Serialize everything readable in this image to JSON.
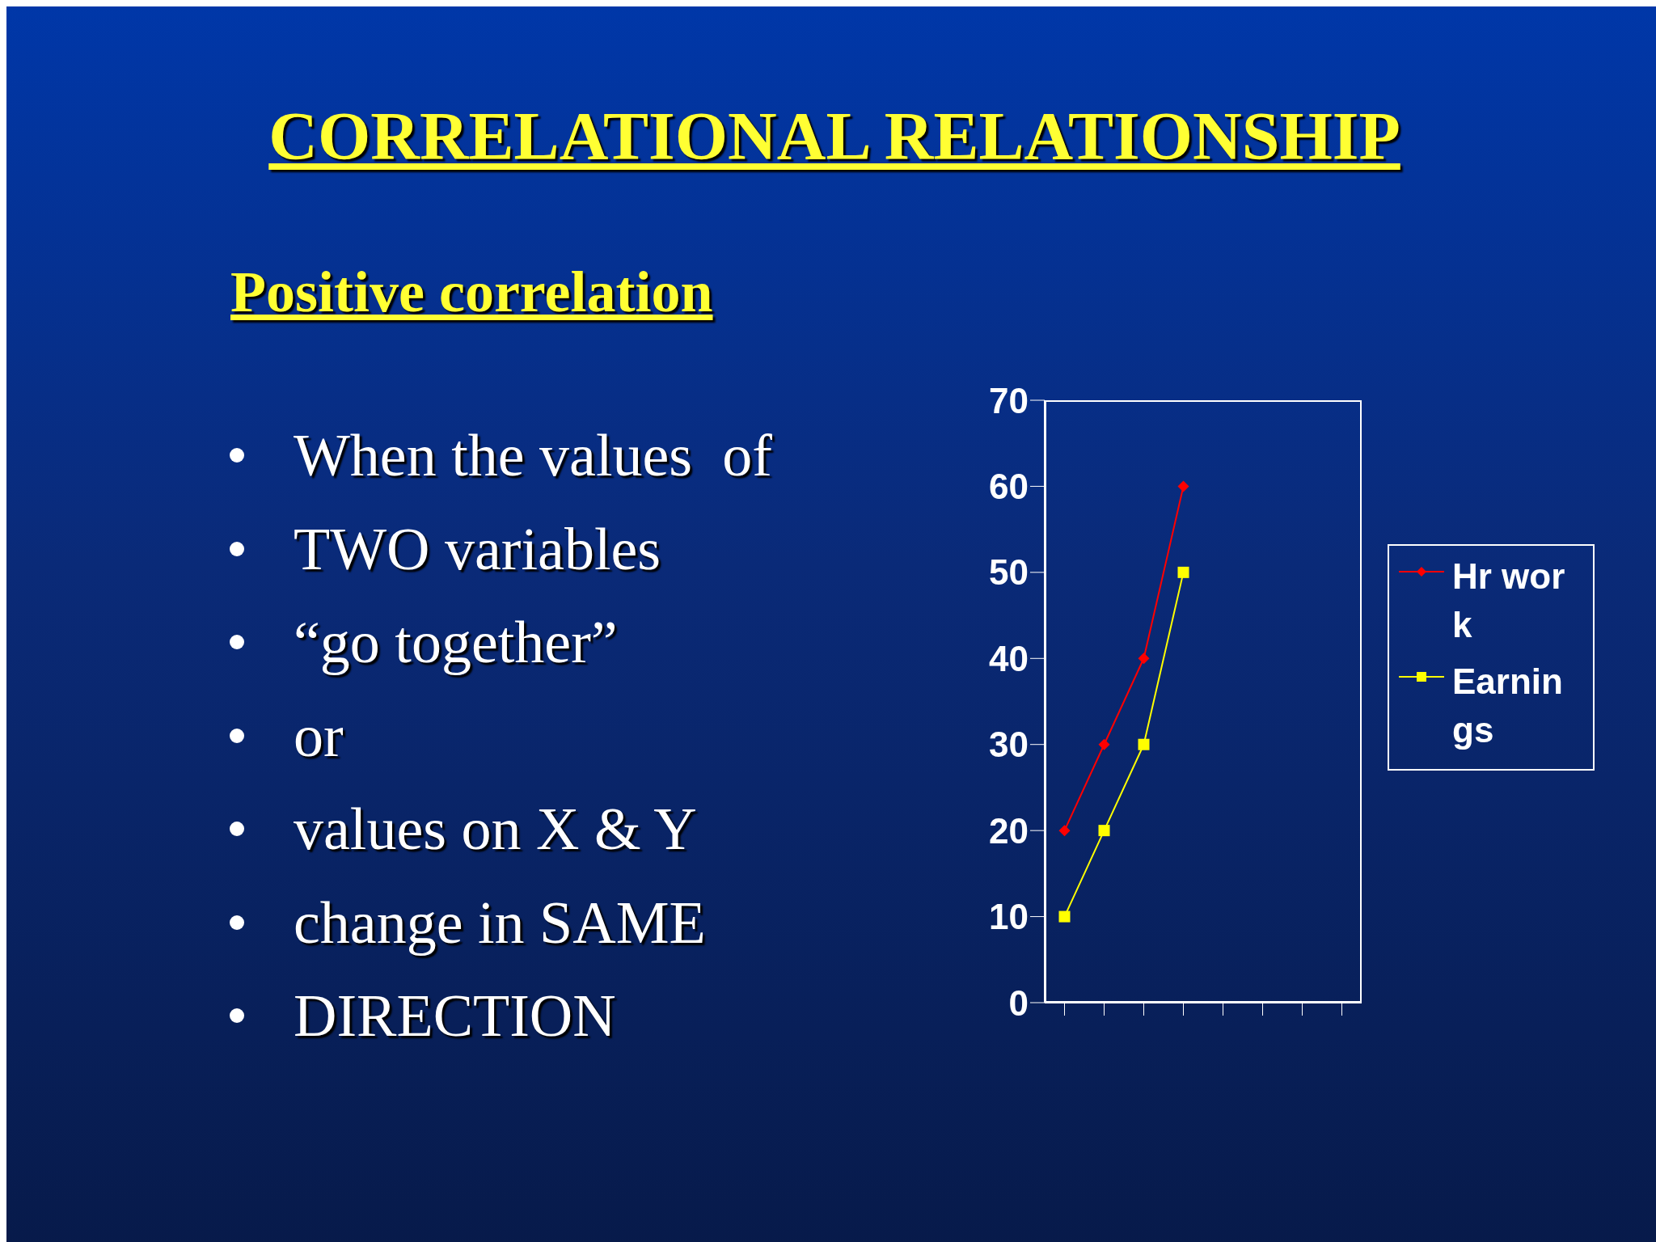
{
  "chart_data": {
    "type": "line",
    "title": "CORRELATIONAL RELATIONSHIP",
    "subtitle": "Positive correlation",
    "annotations": [
      "When the values  of",
      "TWO variables",
      "“go together”",
      "or",
      "values on X & Y",
      "change in SAME",
      "DIRECTION"
    ],
    "categories": [
      null,
      null,
      null,
      null,
      null,
      null,
      null,
      null
    ],
    "series": [
      {
        "name": "Hr work",
        "color": "#ff0000",
        "marker": "diamond",
        "values": [
          20,
          30,
          40,
          60,
          null,
          null,
          null,
          null
        ]
      },
      {
        "name": "Earnings",
        "color": "#ffff00",
        "marker": "square",
        "values": [
          10,
          20,
          30,
          50,
          null,
          null,
          null,
          null
        ]
      }
    ],
    "ylim": [
      0,
      70
    ],
    "yticks": [
      0,
      10,
      20,
      30,
      40,
      50,
      60,
      70
    ],
    "grid": false,
    "legend": "right",
    "line_style": "solid"
  }
}
